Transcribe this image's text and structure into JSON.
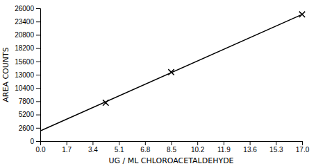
{
  "chart_data": {
    "type": "scatter",
    "xlabel": "UG / ML CHLOROACETALDEHYDE",
    "ylabel": "AREA COUNTS",
    "xlim": [
      0.0,
      17.0
    ],
    "ylim": [
      0,
      26000
    ],
    "xticks": [
      {
        "value": 0.0,
        "label": "0.0"
      },
      1.7,
      3.4,
      5.1,
      6.8,
      8.5,
      10.2,
      11.9,
      13.6,
      15.3,
      {
        "value": 17.0,
        "label": "17.0"
      }
    ],
    "yticks": [
      0,
      2600,
      5200,
      7800,
      10400,
      13000,
      15600,
      18200,
      20800,
      23400,
      26000
    ],
    "grid": false,
    "series": [
      {
        "type": "line",
        "x": [
          0.0,
          17.0
        ],
        "values": [
          2000,
          24800
        ],
        "color": "#000000"
      },
      {
        "type": "scatter",
        "marker": "x",
        "x": [
          4.25,
          8.5,
          17.0
        ],
        "values": [
          7500,
          13500,
          24800
        ],
        "color": "#000000"
      }
    ]
  }
}
